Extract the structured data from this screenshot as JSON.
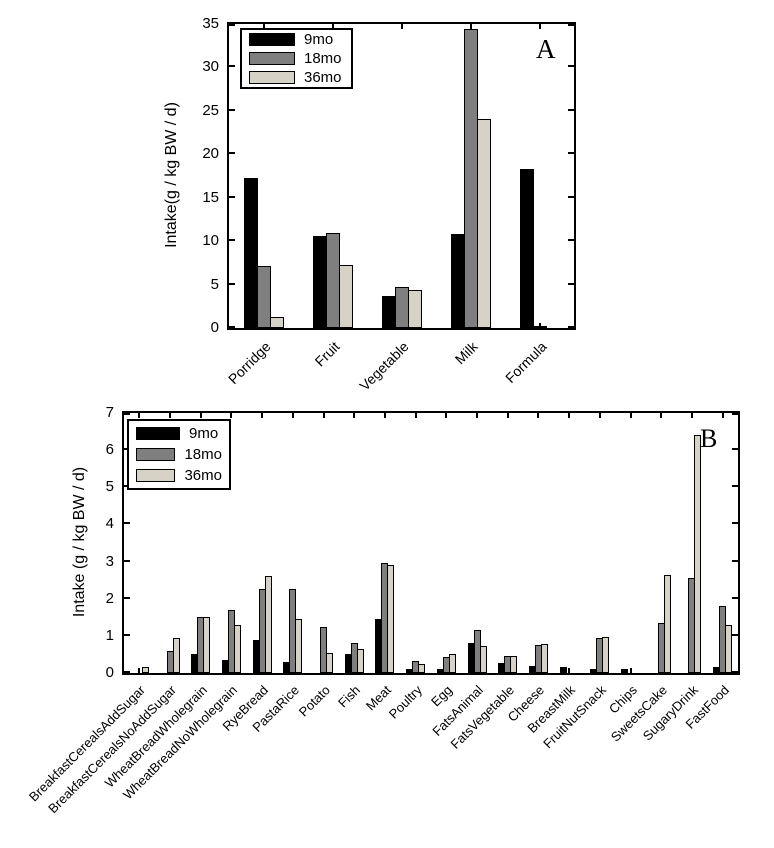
{
  "figure": {
    "background": "#ffffff",
    "text_color": "#000000",
    "axis_color": "#000000"
  },
  "chart_data": [
    {
      "type": "bar",
      "panel_label": "A",
      "ylabel": "Intake(g / kg BW / d)",
      "ylim": [
        0,
        35
      ],
      "yticks": [
        0,
        5,
        10,
        15,
        20,
        25,
        30,
        35
      ],
      "grid": false,
      "legend_position": "top-left",
      "label_rotation": -45,
      "categories": [
        "Porridge",
        "Fruit",
        "Vegetable",
        "Milk",
        "Formula"
      ],
      "series": [
        {
          "name": "9mo",
          "color": "#000000",
          "values": [
            17.3,
            10.6,
            3.7,
            10.8,
            18.3
          ]
        },
        {
          "name": "18mo",
          "color": "#7f7f7f",
          "values": [
            7.1,
            10.9,
            4.7,
            34.4,
            0.25
          ]
        },
        {
          "name": "36mo",
          "color": "#d6d2c6",
          "values": [
            1.3,
            7.3,
            4.4,
            24.1,
            0
          ]
        }
      ]
    },
    {
      "type": "bar",
      "panel_label": "B",
      "ylabel": "Intake (g / kg BW / d)",
      "ylim": [
        0,
        7
      ],
      "yticks": [
        0,
        1,
        2,
        3,
        4,
        5,
        6,
        7
      ],
      "grid": false,
      "legend_position": "top-left",
      "label_rotation": -45,
      "categories": [
        "BreakfastCerealsAddSugar",
        "BreakfastCerealsNoAddSugar",
        "WheatBreadWholegrain",
        "WheatBreadNoWholegrain",
        "RyeBread",
        "PastaRice",
        "Potato",
        "Fish",
        "Meat",
        "Poultry",
        "Egg",
        "FatsAnimal",
        "FatsVegetable",
        "Cheese",
        "BreastMilk",
        "FruitNutSnack",
        "Chips",
        "SweetsCake",
        "SugaryDrink",
        "FastFood"
      ],
      "series": [
        {
          "name": "9mo",
          "color": "#000000",
          "values": [
            0,
            0,
            0.5,
            0.35,
            0.9,
            0.3,
            0,
            0.5,
            1.45,
            0.12,
            0.1,
            0.8,
            0.27,
            0.2,
            0.15,
            0.12,
            0.12,
            0,
            0,
            0.15
          ]
        },
        {
          "name": "18mo",
          "color": "#7f7f7f",
          "values": [
            0,
            0.6,
            1.5,
            1.7,
            2.25,
            2.25,
            1.25,
            0.8,
            2.95,
            0.32,
            0.42,
            1.15,
            0.45,
            0.75,
            0,
            0.95,
            0,
            1.35,
            2.55,
            1.8
          ]
        },
        {
          "name": "36mo",
          "color": "#d6d2c6",
          "values": [
            0.15,
            0.95,
            1.52,
            1.3,
            2.6,
            1.45,
            0.55,
            0.65,
            2.9,
            0.25,
            0.5,
            0.73,
            0.45,
            0.78,
            0,
            0.97,
            0,
            2.65,
            6.4,
            1.3
          ]
        }
      ]
    }
  ]
}
